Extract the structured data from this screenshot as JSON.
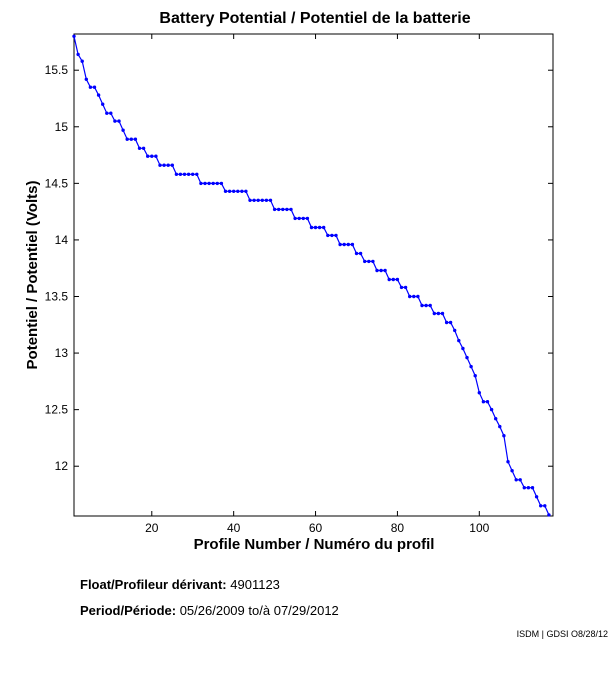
{
  "chart_data": {
    "type": "line",
    "title": "Battery Potential / Potentiel de la batterie",
    "xlabel": "Profile Number / Numéro du profil",
    "ylabel": "Potentiel / Potentiel (Volts)",
    "xlim": [
      1,
      118
    ],
    "ylim": [
      11.56,
      15.82
    ],
    "xticks": [
      20,
      40,
      60,
      80,
      100
    ],
    "yticks": [
      12,
      12.5,
      13,
      13.5,
      14,
      14.5,
      15,
      15.5
    ],
    "grid": false,
    "series": [
      {
        "color": "#0000ff",
        "marker": "dot",
        "x": [
          1,
          2,
          3,
          4,
          5,
          6,
          7,
          8,
          9,
          10,
          11,
          12,
          13,
          14,
          15,
          16,
          17,
          18,
          19,
          20,
          21,
          22,
          23,
          24,
          25,
          26,
          27,
          28,
          29,
          30,
          31,
          32,
          33,
          34,
          35,
          36,
          37,
          38,
          39,
          40,
          41,
          42,
          43,
          44,
          45,
          46,
          47,
          48,
          49,
          50,
          51,
          52,
          53,
          54,
          55,
          56,
          57,
          58,
          59,
          60,
          61,
          62,
          63,
          64,
          65,
          66,
          67,
          68,
          69,
          70,
          71,
          72,
          73,
          74,
          75,
          76,
          77,
          78,
          79,
          80,
          81,
          82,
          83,
          84,
          85,
          86,
          87,
          88,
          89,
          90,
          91,
          92,
          93,
          94,
          95,
          96,
          97,
          98,
          99,
          100,
          101,
          102,
          103,
          104,
          105,
          106,
          107,
          108,
          109,
          110,
          111,
          112,
          113,
          114,
          115,
          116,
          117
        ],
        "y": [
          15.8,
          15.64,
          15.58,
          15.42,
          15.35,
          15.35,
          15.28,
          15.2,
          15.12,
          15.12,
          15.05,
          15.05,
          14.97,
          14.89,
          14.89,
          14.89,
          14.81,
          14.81,
          14.74,
          14.74,
          14.74,
          14.66,
          14.66,
          14.66,
          14.66,
          14.58,
          14.58,
          14.58,
          14.58,
          14.58,
          14.58,
          14.5,
          14.5,
          14.5,
          14.5,
          14.5,
          14.5,
          14.43,
          14.43,
          14.43,
          14.43,
          14.43,
          14.43,
          14.35,
          14.35,
          14.35,
          14.35,
          14.35,
          14.35,
          14.27,
          14.27,
          14.27,
          14.27,
          14.27,
          14.19,
          14.19,
          14.19,
          14.19,
          14.11,
          14.11,
          14.11,
          14.11,
          14.04,
          14.04,
          14.04,
          13.96,
          13.96,
          13.96,
          13.96,
          13.88,
          13.88,
          13.81,
          13.81,
          13.81,
          13.73,
          13.73,
          13.73,
          13.65,
          13.65,
          13.65,
          13.58,
          13.58,
          13.5,
          13.5,
          13.5,
          13.42,
          13.42,
          13.42,
          13.35,
          13.35,
          13.35,
          13.27,
          13.27,
          13.2,
          13.11,
          13.04,
          12.96,
          12.88,
          12.8,
          12.65,
          12.57,
          12.57,
          12.5,
          12.42,
          12.35,
          12.27,
          12.04,
          11.96,
          11.88,
          11.88,
          11.81,
          11.81,
          11.81,
          11.73,
          11.65,
          11.65,
          11.57
        ]
      }
    ]
  },
  "info": {
    "float_label": "Float/Profileur dérivant:",
    "float_value": "4901123",
    "period_label": "Period/Période:",
    "period_start": "05/26/2009",
    "period_sep": "to/à",
    "period_end": "07/29/2012"
  },
  "credit": "ISDM | GDSI O8/28/12"
}
